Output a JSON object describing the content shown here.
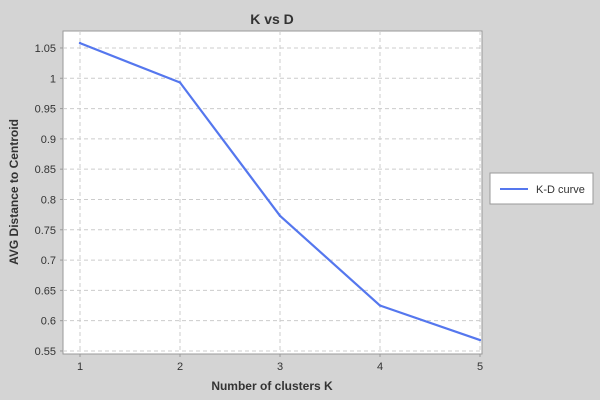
{
  "chart_data": {
    "type": "line",
    "title": "K vs D",
    "xlabel": "Number of clusters K",
    "ylabel": "AVG Distance to Centroid",
    "x": [
      1,
      2,
      3,
      4,
      5
    ],
    "series": [
      {
        "name": "K-D curve",
        "values": [
          1.058,
          0.993,
          0.773,
          0.625,
          0.568
        ],
        "color": "#5577ee"
      }
    ],
    "xlim": [
      0.83,
      5.02
    ],
    "ylim": [
      0.545,
      1.078
    ],
    "xticks": [
      "1",
      "2",
      "3",
      "4",
      "5"
    ],
    "yticks": [
      "0.55",
      "0.6",
      "0.65",
      "0.7",
      "0.75",
      "0.8",
      "0.85",
      "0.9",
      "0.95",
      "1",
      "1.05"
    ],
    "grid": true,
    "legend_position": "right"
  }
}
